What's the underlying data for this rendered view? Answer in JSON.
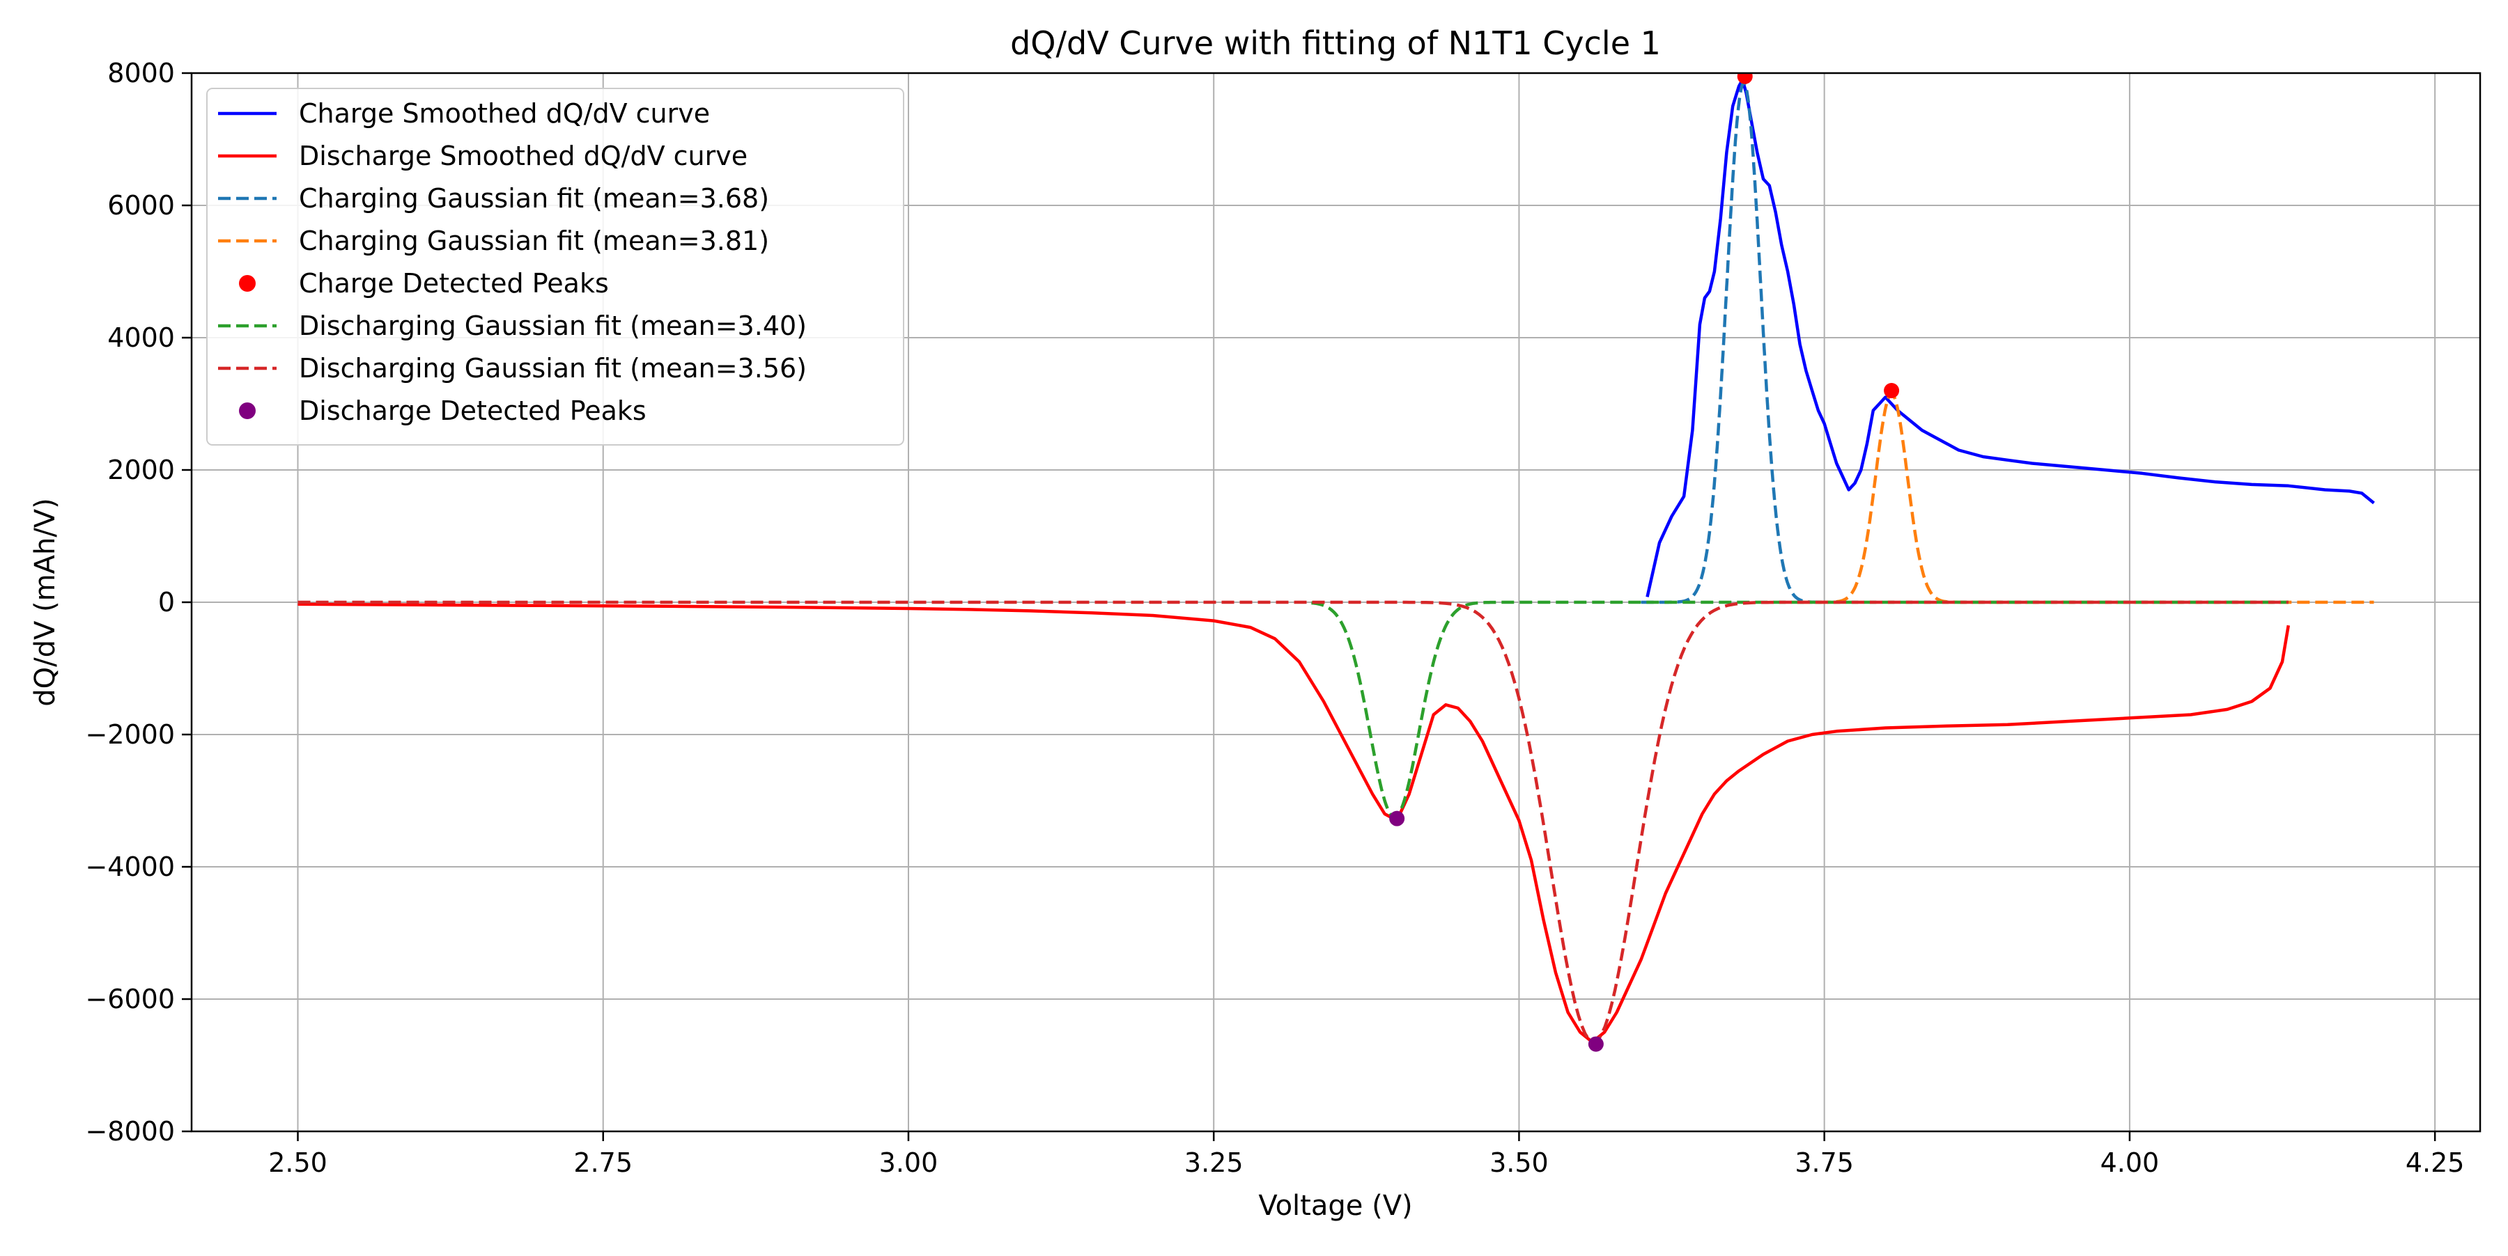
{
  "chart_data": {
    "type": "line",
    "title": "dQ/dV Curve with fitting of N1T1 Cycle 1",
    "xlabel": "Voltage (V)",
    "ylabel": "dQ/dV (mAh/V)",
    "xlim": [
      2.413,
      4.287
    ],
    "ylim": [
      -8000,
      8000
    ],
    "x_ticks": [
      2.5,
      2.75,
      3.0,
      3.25,
      3.5,
      3.75,
      4.0,
      4.25
    ],
    "x_tick_labels": [
      "2.50",
      "2.75",
      "3.00",
      "3.25",
      "3.50",
      "3.75",
      "4.00",
      "4.25"
    ],
    "y_ticks": [
      -8000,
      -6000,
      -4000,
      -2000,
      0,
      2000,
      4000,
      6000,
      8000
    ],
    "y_tick_labels": [
      "−8000",
      "−6000",
      "−4000",
      "−2000",
      "0",
      "2000",
      "4000",
      "6000",
      "8000"
    ],
    "grid": true,
    "legend_position": "top-left",
    "series": [
      {
        "name": "Charge Smoothed dQ/dV curve",
        "kind": "line",
        "color": "#0000ff",
        "dash": "solid",
        "x": [
          3.605,
          3.615,
          3.625,
          3.635,
          3.642,
          3.648,
          3.652,
          3.656,
          3.66,
          3.665,
          3.67,
          3.675,
          3.68,
          3.683,
          3.686,
          3.69,
          3.695,
          3.7,
          3.705,
          3.71,
          3.715,
          3.72,
          3.725,
          3.73,
          3.735,
          3.74,
          3.745,
          3.75,
          3.755,
          3.76,
          3.765,
          3.77,
          3.775,
          3.78,
          3.785,
          3.79,
          3.795,
          3.8,
          3.805,
          3.81,
          3.82,
          3.83,
          3.84,
          3.85,
          3.86,
          3.88,
          3.9,
          3.92,
          3.95,
          3.98,
          4.01,
          4.04,
          4.07,
          4.1,
          4.13,
          4.16,
          4.18,
          4.19,
          4.2
        ],
        "y": [
          80,
          900,
          1300,
          1600,
          2600,
          4200,
          4600,
          4700,
          5000,
          5800,
          6800,
          7500,
          7800,
          7900,
          7700,
          7300,
          6800,
          6400,
          6300,
          5900,
          5400,
          5000,
          4500,
          3900,
          3500,
          3200,
          2900,
          2700,
          2400,
          2100,
          1900,
          1700,
          1800,
          2000,
          2400,
          2900,
          3000,
          3100,
          3000,
          2900,
          2750,
          2600,
          2500,
          2400,
          2300,
          2200,
          2150,
          2100,
          2050,
          2000,
          1950,
          1880,
          1820,
          1780,
          1760,
          1700,
          1680,
          1650,
          1500
        ]
      },
      {
        "name": "Discharge Smoothed dQ/dV curve",
        "kind": "line",
        "color": "#ff0000",
        "dash": "solid",
        "x": [
          2.5,
          2.6,
          2.7,
          2.8,
          2.9,
          3.0,
          3.05,
          3.1,
          3.15,
          3.2,
          3.25,
          3.28,
          3.3,
          3.32,
          3.34,
          3.36,
          3.38,
          3.39,
          3.4,
          3.41,
          3.42,
          3.43,
          3.44,
          3.45,
          3.46,
          3.47,
          3.48,
          3.49,
          3.5,
          3.51,
          3.52,
          3.53,
          3.54,
          3.55,
          3.56,
          3.57,
          3.58,
          3.59,
          3.6,
          3.61,
          3.62,
          3.63,
          3.64,
          3.65,
          3.66,
          3.67,
          3.68,
          3.7,
          3.72,
          3.74,
          3.76,
          3.8,
          3.85,
          3.9,
          3.95,
          4.0,
          4.05,
          4.08,
          4.1,
          4.115,
          4.125,
          4.13
        ],
        "y": [
          -30,
          -40,
          -50,
          -60,
          -75,
          -95,
          -110,
          -130,
          -160,
          -200,
          -280,
          -380,
          -550,
          -900,
          -1500,
          -2200,
          -2900,
          -3200,
          -3300,
          -2900,
          -2300,
          -1700,
          -1550,
          -1600,
          -1800,
          -2100,
          -2500,
          -2900,
          -3300,
          -3900,
          -4800,
          -5600,
          -6200,
          -6500,
          -6650,
          -6500,
          -6200,
          -5800,
          -5400,
          -4900,
          -4400,
          -4000,
          -3600,
          -3200,
          -2900,
          -2700,
          -2550,
          -2300,
          -2100,
          -2000,
          -1950,
          -1900,
          -1870,
          -1850,
          -1800,
          -1750,
          -1700,
          -1620,
          -1500,
          -1300,
          -900,
          -350
        ]
      },
      {
        "name": "Charging Gaussian fit (mean=3.68)",
        "kind": "gaussian",
        "color": "#1f77b4",
        "dash": "dashed",
        "amplitude": 7850,
        "mean": 3.684,
        "sigma": 0.014,
        "x_range": [
          3.6,
          3.75
        ]
      },
      {
        "name": "Charging Gaussian fit (mean=3.81)",
        "kind": "gaussian",
        "color": "#ff7f0e",
        "dash": "dashed",
        "amplitude": 3150,
        "mean": 3.805,
        "sigma": 0.013,
        "x_range": [
          3.73,
          4.2
        ]
      },
      {
        "name": "Charge Detected Peaks",
        "kind": "scatter",
        "color": "#ff0000",
        "x": [
          3.685,
          3.805
        ],
        "y": [
          7950,
          3200
        ]
      },
      {
        "name": "Discharging Gaussian fit (mean=3.40)",
        "kind": "gaussian",
        "color": "#2ca02c",
        "dash": "dashed",
        "amplitude": -3250,
        "mean": 3.398,
        "sigma": 0.02,
        "x_range": [
          3.33,
          4.13
        ]
      },
      {
        "name": "Discharging Gaussian fit (mean=3.56)",
        "kind": "gaussian",
        "color": "#d62728",
        "dash": "dashed",
        "amplitude": -6650,
        "mean": 3.561,
        "sigma": 0.035,
        "x_range": [
          2.5,
          4.13
        ]
      },
      {
        "name": "Discharge Detected Peaks",
        "kind": "scatter",
        "color": "#800080",
        "x": [
          3.4,
          3.563
        ],
        "y": [
          -3270,
          -6680
        ]
      }
    ]
  }
}
